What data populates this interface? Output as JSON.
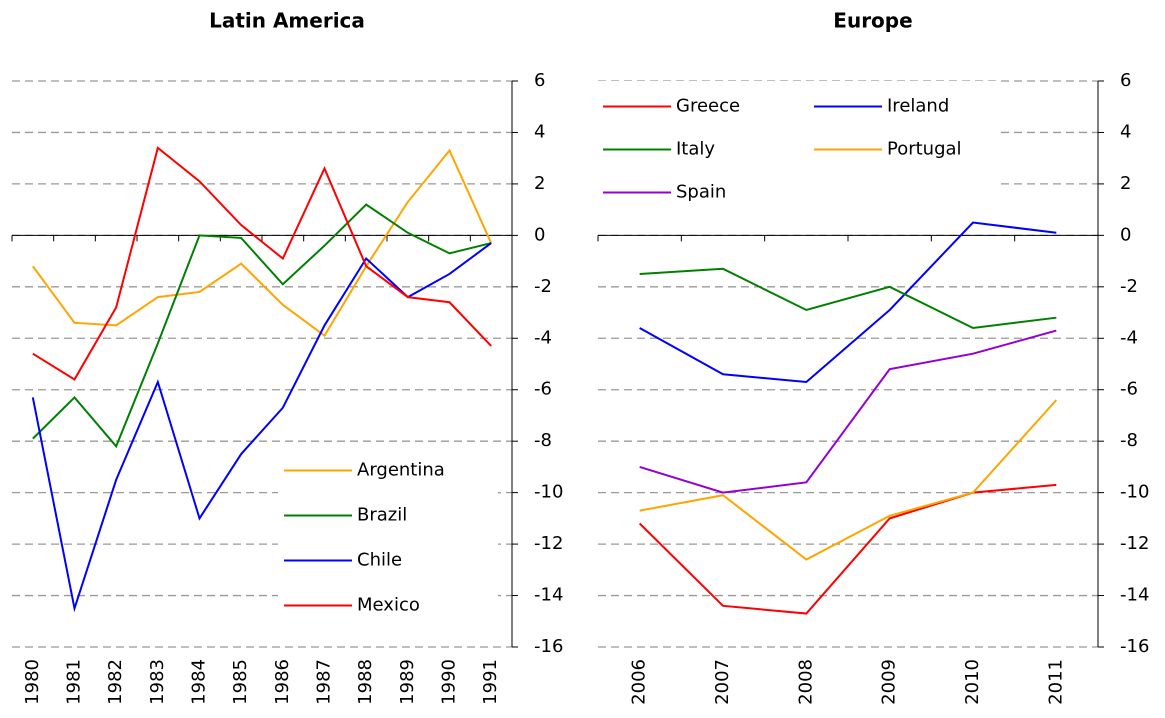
{
  "chart_data": [
    {
      "type": "line",
      "title": "Latin America",
      "categories": [
        "1980",
        "1981",
        "1982",
        "1983",
        "1984",
        "1985",
        "1986",
        "1987",
        "1988",
        "1989",
        "1990",
        "1991"
      ],
      "series": [
        {
          "name": "Argentina",
          "color": "#ffa500",
          "values": [
            -1.2,
            -3.4,
            -3.5,
            -2.4,
            -2.2,
            -1.1,
            -2.7,
            -3.9,
            -1.2,
            1.3,
            3.3,
            -0.3
          ]
        },
        {
          "name": "Brazil",
          "color": "#008000",
          "values": [
            -7.9,
            -6.3,
            -8.2,
            -4.2,
            0.0,
            -0.1,
            -1.9,
            -0.4,
            1.2,
            0.1,
            -0.7,
            -0.3
          ]
        },
        {
          "name": "Chile",
          "color": "#0000ff",
          "values": [
            -6.3,
            -14.5,
            -9.5,
            -5.7,
            -11.0,
            -8.5,
            -6.7,
            -3.5,
            -0.9,
            -2.4,
            -1.5,
            -0.3
          ]
        },
        {
          "name": "Mexico",
          "color": "#ff0000",
          "values": [
            -4.6,
            -5.6,
            -2.8,
            3.4,
            2.1,
            0.4,
            -0.9,
            2.6,
            -1.2,
            -2.4,
            -2.6,
            -4.3
          ]
        }
      ],
      "ylim": [
        -16,
        6
      ],
      "yticks": [
        6,
        4,
        2,
        0,
        -2,
        -4,
        -6,
        -8,
        -10,
        -12,
        -14,
        -16
      ],
      "grid": true,
      "legend": "lower right",
      "legend_columns": 1
    },
    {
      "type": "line",
      "title": "Europe",
      "categories": [
        "2006",
        "2007",
        "2008",
        "2009",
        "2010",
        "2011"
      ],
      "series": [
        {
          "name": "Greece",
          "color": "#ff0000",
          "values": [
            -11.2,
            -14.4,
            -14.7,
            -11.0,
            -10.0,
            -9.7
          ]
        },
        {
          "name": "Ireland",
          "color": "#0000ff",
          "values": [
            -3.6,
            -5.4,
            -5.7,
            -2.9,
            0.5,
            0.1
          ]
        },
        {
          "name": "Italy",
          "color": "#008000",
          "values": [
            -1.5,
            -1.3,
            -2.9,
            -2.0,
            -3.6,
            -3.2
          ]
        },
        {
          "name": "Portugal",
          "color": "#ffa500",
          "values": [
            -10.7,
            -10.1,
            -12.6,
            -10.9,
            -10.0,
            -6.4
          ]
        },
        {
          "name": "Spain",
          "color": "#9400d3",
          "values": [
            -9.0,
            -10.0,
            -9.6,
            -5.2,
            -4.6,
            -3.7
          ]
        }
      ],
      "ylim": [
        -16,
        6
      ],
      "yticks": [
        6,
        4,
        2,
        0,
        -2,
        -4,
        -6,
        -8,
        -10,
        -12,
        -14,
        -16
      ],
      "grid": true,
      "legend": "upper left",
      "legend_columns": 2
    }
  ]
}
